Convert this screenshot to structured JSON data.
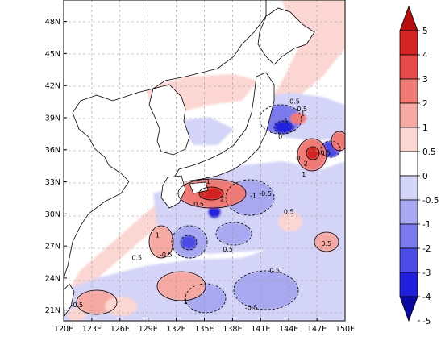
{
  "map": {
    "x_axis": {
      "ticks": [
        "120E",
        "123E",
        "126E",
        "129E",
        "132E",
        "135E",
        "138E",
        "141E",
        "144E",
        "147E",
        "150E"
      ],
      "range": [
        120,
        150
      ]
    },
    "y_axis": {
      "ticks": [
        "21N",
        "24N",
        "27N",
        "30N",
        "33N",
        "36N",
        "39N",
        "42N",
        "45N",
        "48N"
      ],
      "range": [
        20,
        50
      ]
    },
    "grid": "dashed",
    "contour_labels": [
      {
        "text": "-0.5",
        "lon": 144.5,
        "lat": 40.3
      },
      {
        "text": "-0.5",
        "lon": 145.3,
        "lat": 39.6
      },
      {
        "text": "1",
        "lon": 145.5,
        "lat": 39.2
      },
      {
        "text": "-1",
        "lon": 143.6,
        "lat": 38.5
      },
      {
        "text": "0",
        "lon": 143.1,
        "lat": 37.0
      },
      {
        "text": "-0.5",
        "lon": 147.8,
        "lat": 35.5
      },
      {
        "text": "0",
        "lon": 145.0,
        "lat": 35.0
      },
      {
        "text": "2",
        "lon": 145.8,
        "lat": 34.5
      },
      {
        "text": "1",
        "lon": 145.6,
        "lat": 33.5
      },
      {
        "text": "1",
        "lon": 135.4,
        "lat": 32.8
      },
      {
        "text": "-1",
        "lon": 140.2,
        "lat": 31.5
      },
      {
        "text": "2",
        "lon": 136.9,
        "lat": 31.2
      },
      {
        "text": "-0.5",
        "lon": 141.5,
        "lat": 31.7
      },
      {
        "text": "0.5",
        "lon": 134.4,
        "lat": 30.7
      },
      {
        "text": "0.5",
        "lon": 144.0,
        "lat": 30.0
      },
      {
        "text": "1",
        "lon": 130.0,
        "lat": 27.8
      },
      {
        "text": "-0.5",
        "lon": 130.9,
        "lat": 26.0
      },
      {
        "text": "0.5",
        "lon": 137.5,
        "lat": 26.5
      },
      {
        "text": "0.5",
        "lon": 148.0,
        "lat": 27.0
      },
      {
        "text": "-0.5",
        "lon": 121.4,
        "lat": 21.3
      },
      {
        "text": "1",
        "lon": 133.0,
        "lat": 21.6
      },
      {
        "text": "-0.5",
        "lon": 140.0,
        "lat": 21.0
      },
      {
        "text": "0.5",
        "lon": 142.5,
        "lat": 24.5
      },
      {
        "text": "0.5",
        "lon": 127.8,
        "lat": 25.7
      }
    ]
  },
  "colorbar": {
    "labels": [
      "5",
      "4",
      "3",
      "2",
      "1",
      "0.5",
      "0",
      "-0.5",
      "-1",
      "-2",
      "-3",
      "-4",
      "-5"
    ],
    "colors": [
      "#b40f0f",
      "#d42424",
      "#e64a4a",
      "#f07a74",
      "#f6a9a3",
      "#fbd6d2",
      "#ffffff",
      "#d4d4f8",
      "#a8a8f0",
      "#7a7aec",
      "#4c4ce6",
      "#2020dc",
      "#0a0aa0"
    ]
  }
}
